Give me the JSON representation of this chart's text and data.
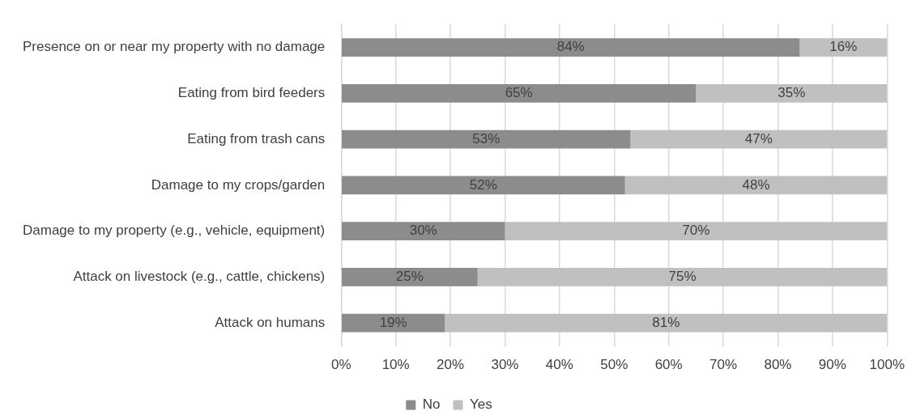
{
  "chart_data": {
    "type": "bar",
    "orientation": "horizontal",
    "stacked": true,
    "categories": [
      "Presence on or near my property with no damage",
      "Eating from bird feeders",
      "Eating from trash cans",
      "Damage to my crops/garden",
      "Damage to my property (e.g., vehicle, equipment)",
      "Attack on livestock (e.g., cattle, chickens)",
      "Attack on humans"
    ],
    "series": [
      {
        "name": "No",
        "color": "#8c8c8c",
        "values": [
          84,
          65,
          53,
          52,
          30,
          25,
          19
        ],
        "value_labels": [
          "84%",
          "65%",
          "53%",
          "52%",
          "30%",
          "25%",
          "19%"
        ]
      },
      {
        "name": "Yes",
        "color": "#c0c0c0",
        "values": [
          16,
          35,
          47,
          48,
          70,
          75,
          81
        ],
        "value_labels": [
          "16%",
          "35%",
          "47%",
          "48%",
          "70%",
          "75%",
          "81%"
        ]
      }
    ],
    "xlim": [
      0,
      100
    ],
    "xticks": [
      {
        "value": 0,
        "label": "0%"
      },
      {
        "value": 10,
        "label": "10%"
      },
      {
        "value": 20,
        "label": "20%"
      },
      {
        "value": 30,
        "label": "30%"
      },
      {
        "value": 40,
        "label": "40%"
      },
      {
        "value": 50,
        "label": "50%"
      },
      {
        "value": 60,
        "label": "60%"
      },
      {
        "value": 70,
        "label": "70%"
      },
      {
        "value": 80,
        "label": "80%"
      },
      {
        "value": 90,
        "label": "90%"
      },
      {
        "value": 100,
        "label": "100%"
      }
    ],
    "grid": "x",
    "legend": "bottom"
  }
}
